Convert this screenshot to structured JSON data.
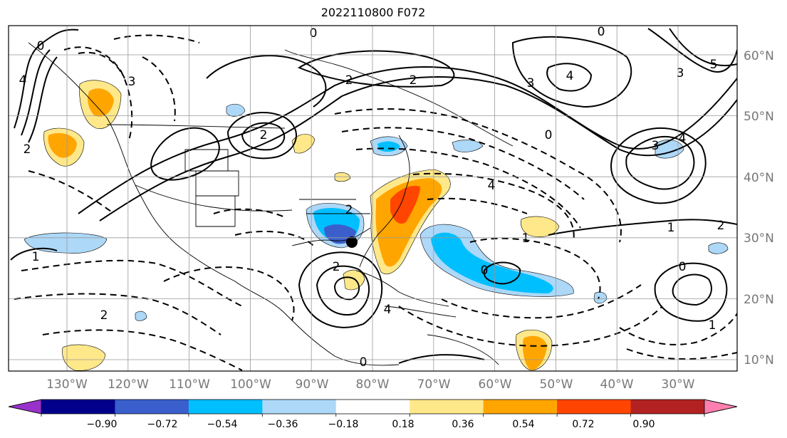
{
  "title": "2022110800 F072",
  "latitude_labels": [
    "60°N",
    "50°N",
    "40°N",
    "30°N",
    "20°N",
    "10°N"
  ],
  "longitude_labels": [
    "130°W",
    "120°W",
    "110°W",
    "100°W",
    "90°W",
    "80°W",
    "70°W",
    "60°W",
    "50°W",
    "40°W",
    "30°W"
  ],
  "colorbar": {
    "ticks": [
      "−0.90",
      "−0.72",
      "−0.54",
      "−0.36",
      "−0.18",
      "0.18",
      "0.36",
      "0.54",
      "0.72",
      "0.90"
    ],
    "colors": [
      "#9932cc",
      "#00008b",
      "#3a5fcd",
      "#00bfff",
      "#add8f8",
      "#ffffff",
      "#ffe88a",
      "#ffa500",
      "#ff4500",
      "#b22222",
      "#ff80b0"
    ]
  },
  "contour_labels": [
    "0",
    "0",
    "0",
    "0",
    "0",
    "0",
    "0",
    "1",
    "1",
    "1",
    "1",
    "2",
    "2",
    "2",
    "2",
    "2",
    "2",
    "2",
    "2",
    "3",
    "3",
    "3",
    "3",
    "4",
    "4",
    "4",
    "4",
    "4",
    "5"
  ],
  "chart_data": {
    "type": "heatmap",
    "title": "2022110800 F072",
    "latitude_ticks": [
      60,
      50,
      40,
      30,
      20,
      10
    ],
    "longitude_ticks": [
      -130,
      -120,
      -110,
      -100,
      -90,
      -80,
      -70,
      -60,
      -50,
      -40,
      -30
    ],
    "color_levels": [
      -0.9,
      -0.72,
      -0.54,
      -0.36,
      -0.18,
      0.18,
      0.36,
      0.54,
      0.72,
      0.9
    ]
  }
}
